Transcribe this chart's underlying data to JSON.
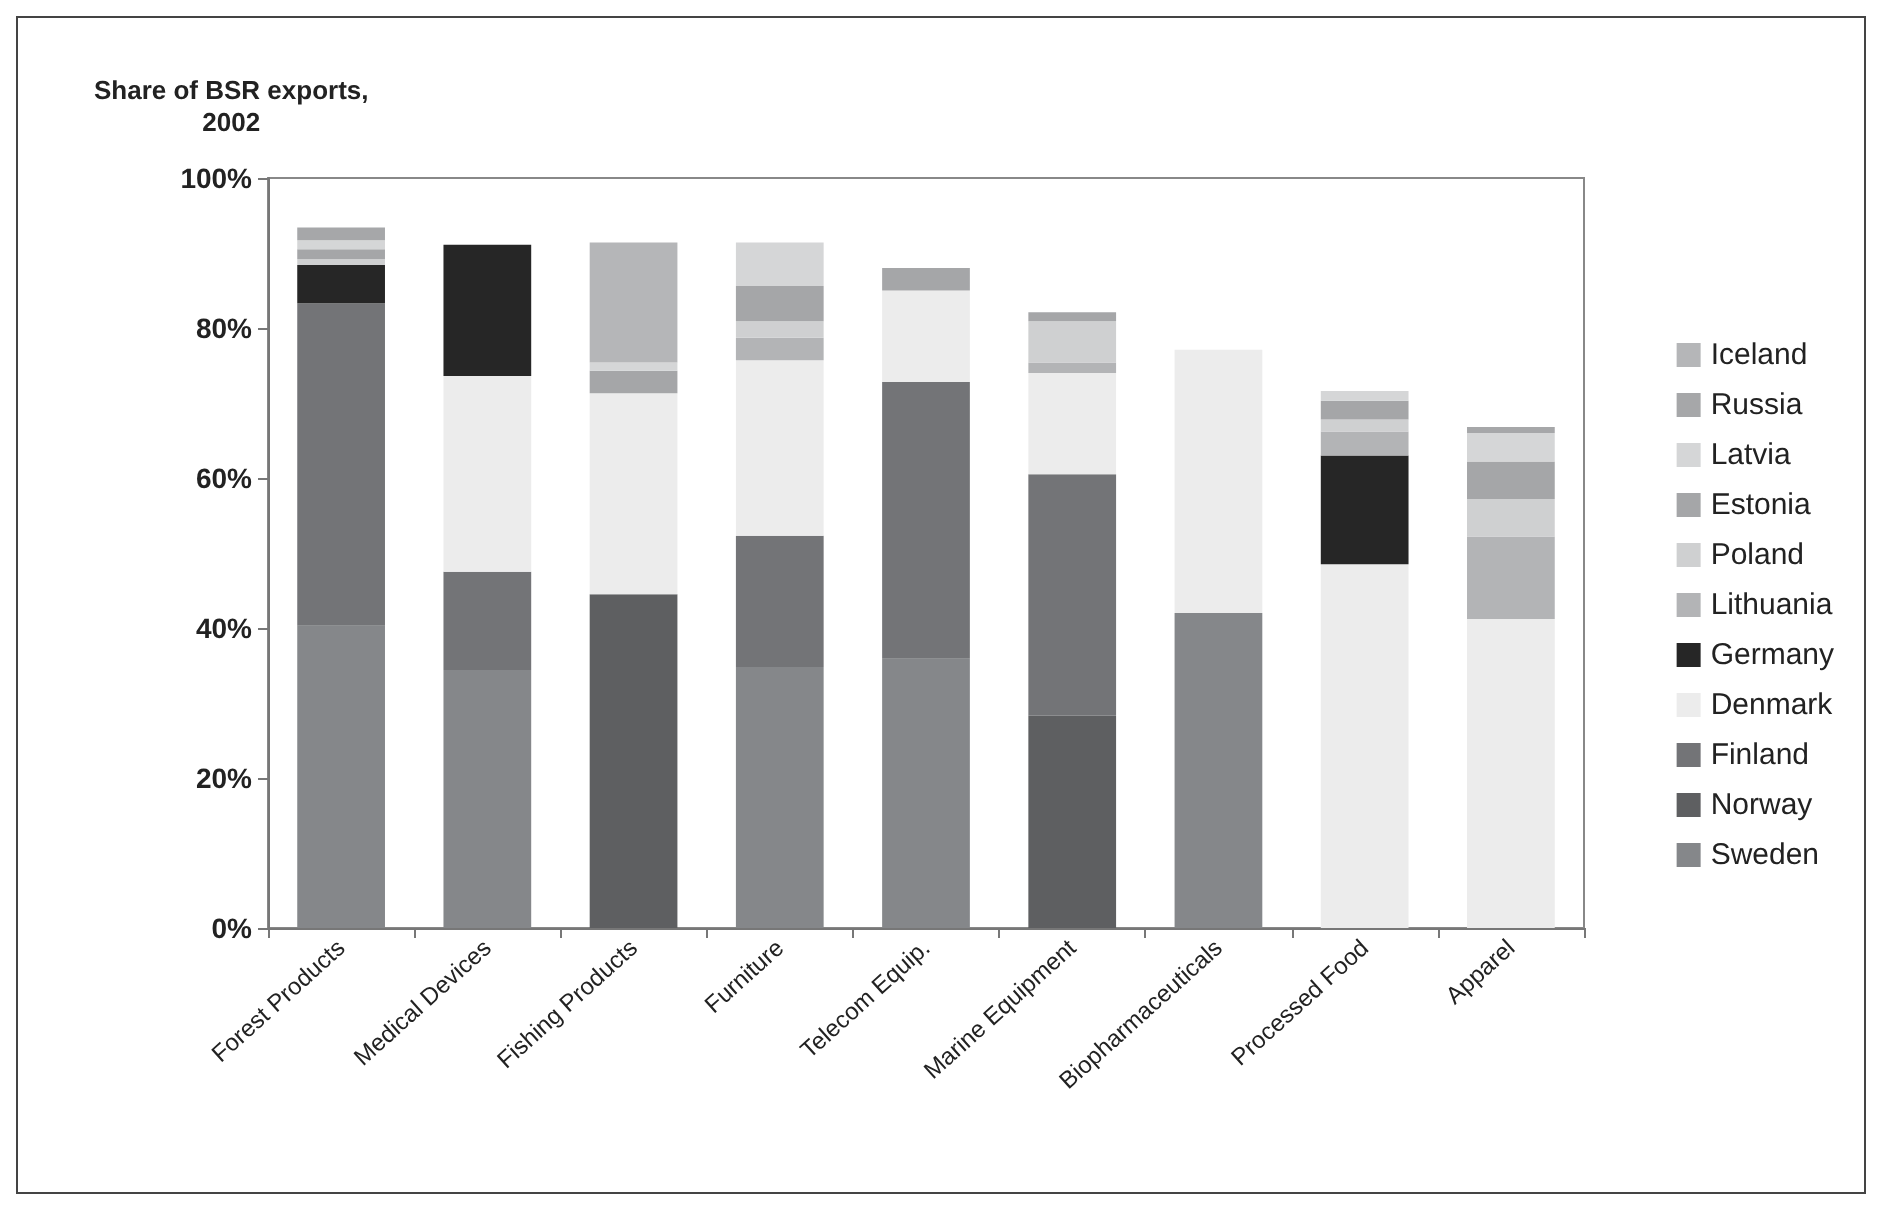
{
  "chart_data": {
    "type": "bar",
    "stacked": true,
    "ylabel": "Share of BSR exports,\n2002",
    "categories": [
      "Forest Products",
      "Medical Devices",
      "Fishing Products",
      "Furniture",
      "Telecom Equip.",
      "Marine Equipment",
      "Biopharmaceuticals",
      "Processed Food",
      "Apparel"
    ],
    "series": [
      {
        "name": "Sweden",
        "color": "#85878a",
        "values": [
          40.3,
          34.4,
          null,
          34.8,
          35.9,
          null,
          42,
          null,
          null
        ]
      },
      {
        "name": "Norway",
        "color": "#5e5f61",
        "values": [
          null,
          null,
          44.5,
          null,
          null,
          28.3,
          null,
          null,
          null
        ]
      },
      {
        "name": "Finland",
        "color": "#737477",
        "values": [
          43,
          13.1,
          null,
          17.5,
          36.9,
          32.2,
          null,
          null,
          null
        ]
      },
      {
        "name": "Denmark",
        "color": "#ececec",
        "values": [
          null,
          26.1,
          26.8,
          23.4,
          12.2,
          13.5,
          35.1,
          48.5,
          41.2
        ]
      },
      {
        "name": "Germany",
        "color": "#262626",
        "values": [
          5.1,
          17.5,
          null,
          null,
          null,
          null,
          null,
          14.5,
          null
        ]
      },
      {
        "name": "Lithuania",
        "color": "#b3b4b6",
        "values": [
          null,
          null,
          null,
          3,
          null,
          1.4,
          null,
          3.2,
          11
        ]
      },
      {
        "name": "Poland",
        "color": "#cfd0d1",
        "values": [
          0.8,
          null,
          null,
          2.2,
          null,
          5.5,
          null,
          1.6,
          5
        ]
      },
      {
        "name": "Estonia",
        "color": "#a5a6a8",
        "values": [
          1.3,
          null,
          3,
          4.7,
          3,
          1.2,
          null,
          2.5,
          5
        ]
      },
      {
        "name": "Latvia",
        "color": "#d5d6d7",
        "values": [
          1.2,
          null,
          1.1,
          5.8,
          null,
          null,
          null,
          1.3,
          3.8
        ]
      },
      {
        "name": "Russia",
        "color": "#a6a7a9",
        "values": [
          1.7,
          null,
          null,
          null,
          null,
          null,
          null,
          null,
          0.8
        ]
      },
      {
        "name": "Iceland",
        "color": "#b5b6b8",
        "values": [
          null,
          null,
          16,
          null,
          null,
          null,
          null,
          null,
          null
        ]
      }
    ],
    "ylim": [
      0,
      100
    ],
    "yticks": [
      {
        "value": 0,
        "label": "0%"
      },
      {
        "value": 20,
        "label": "20%"
      },
      {
        "value": 40,
        "label": "40%"
      },
      {
        "value": 60,
        "label": "60%"
      },
      {
        "value": 80,
        "label": "80%"
      },
      {
        "value": 100,
        "label": "100%"
      }
    ],
    "grid": false,
    "legend": "right"
  }
}
